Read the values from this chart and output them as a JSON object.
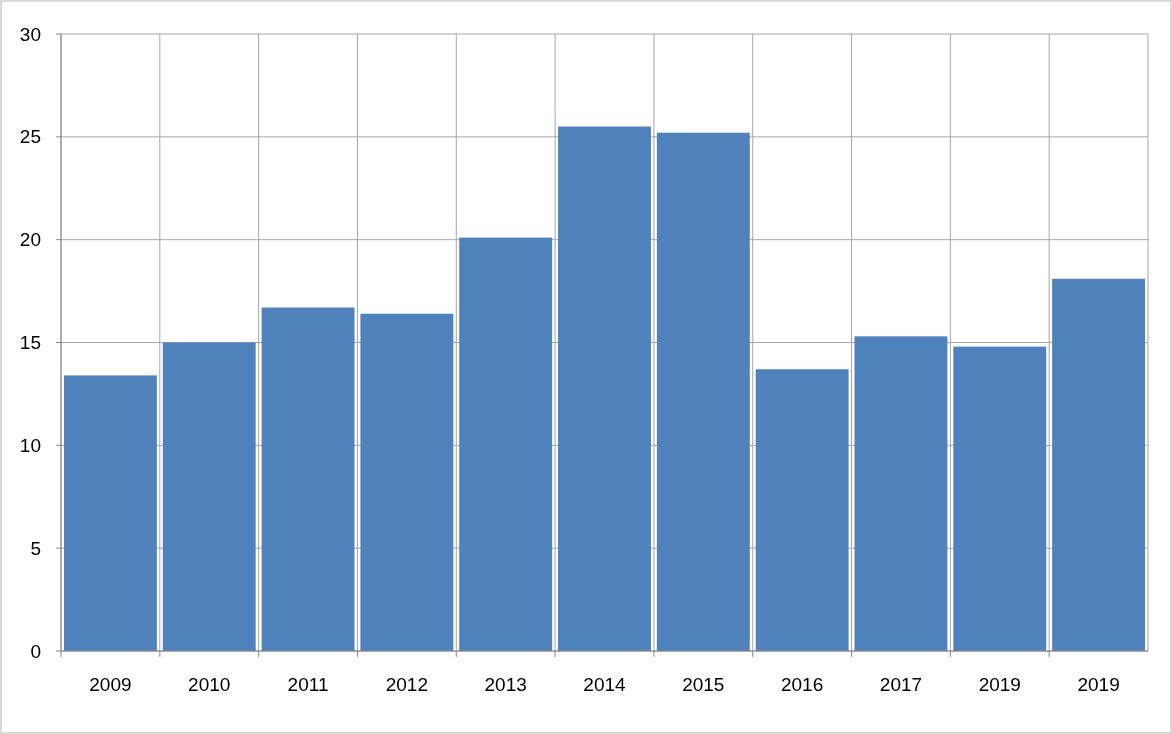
{
  "chart_data": {
    "type": "bar",
    "categories": [
      "2009",
      "2010",
      "2011",
      "2012",
      "2013",
      "2014",
      "2015",
      "2016",
      "2017",
      "2019",
      "2019"
    ],
    "values": [
      13.4,
      15.0,
      16.7,
      16.4,
      20.1,
      25.5,
      25.2,
      13.7,
      15.3,
      14.8,
      18.1
    ],
    "color": "#4f81bd",
    "ylim": [
      0,
      30
    ],
    "yticks": [
      0,
      5,
      10,
      15,
      20,
      25,
      30
    ],
    "grid": true
  }
}
